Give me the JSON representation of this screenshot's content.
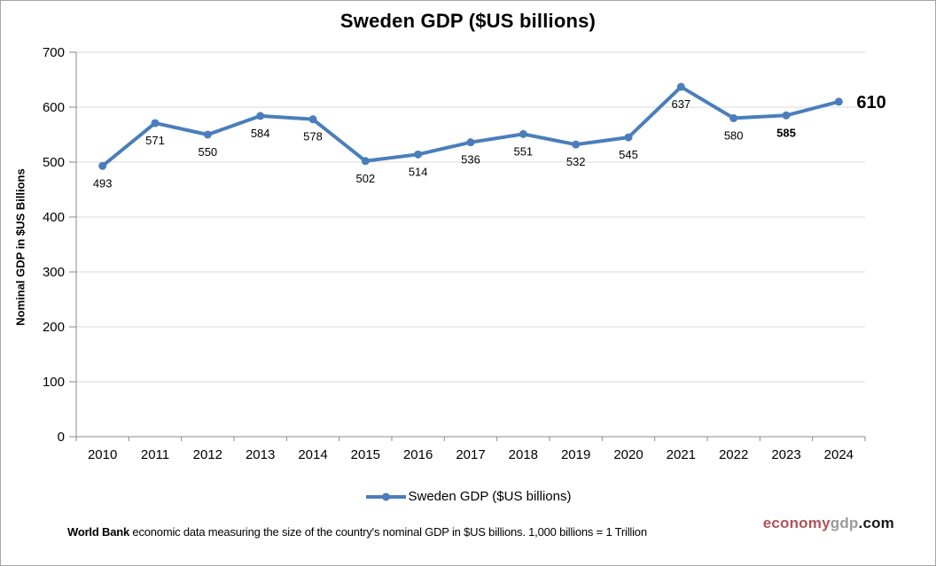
{
  "page": {
    "title": "Sweden GDP ($US billions)"
  },
  "chart_data": {
    "type": "line",
    "title": "Sweden GDP ($US billions)",
    "categories": [
      "2010",
      "2011",
      "2012",
      "2013",
      "2014",
      "2015",
      "2016",
      "2017",
      "2018",
      "2019",
      "2020",
      "2021",
      "2022",
      "2023",
      "2024"
    ],
    "series": [
      {
        "name": "Sweden GDP ($US billions)",
        "values": [
          493,
          571,
          550,
          584,
          578,
          502,
          514,
          536,
          551,
          532,
          545,
          637,
          580,
          585,
          610
        ]
      }
    ],
    "xlabel": "",
    "ylabel": "Nominal GDP in $US Billions",
    "ylim": [
      0,
      700
    ],
    "yticks": [
      0,
      100,
      200,
      300,
      400,
      500,
      600,
      700
    ],
    "grid": "horizontal-only",
    "data_labels": true,
    "bold_label_categories": [
      "2023",
      "2024"
    ],
    "last_point_label": {
      "category": "2024",
      "position": "right",
      "font_size": 20
    },
    "legend_position": "bottom",
    "colors": {
      "series_line": "#4a7ebb",
      "gridline": "#d9d9d9",
      "axis_line": "#898989",
      "label_text": "#000000"
    }
  },
  "legend": {
    "label": "Sweden GDP ($US billions)"
  },
  "footer": {
    "bold": "World Bank",
    "rest": " economic data  measuring the size of the country's nominal GDP in $US billions. 1,000 billions = 1 Trillion"
  },
  "watermark": {
    "part1": "economy",
    "part2": "gdp",
    "part3": ".com",
    "color1": "#b0545a",
    "color2": "#9b9b9b",
    "color3": "#1a1a1a"
  }
}
